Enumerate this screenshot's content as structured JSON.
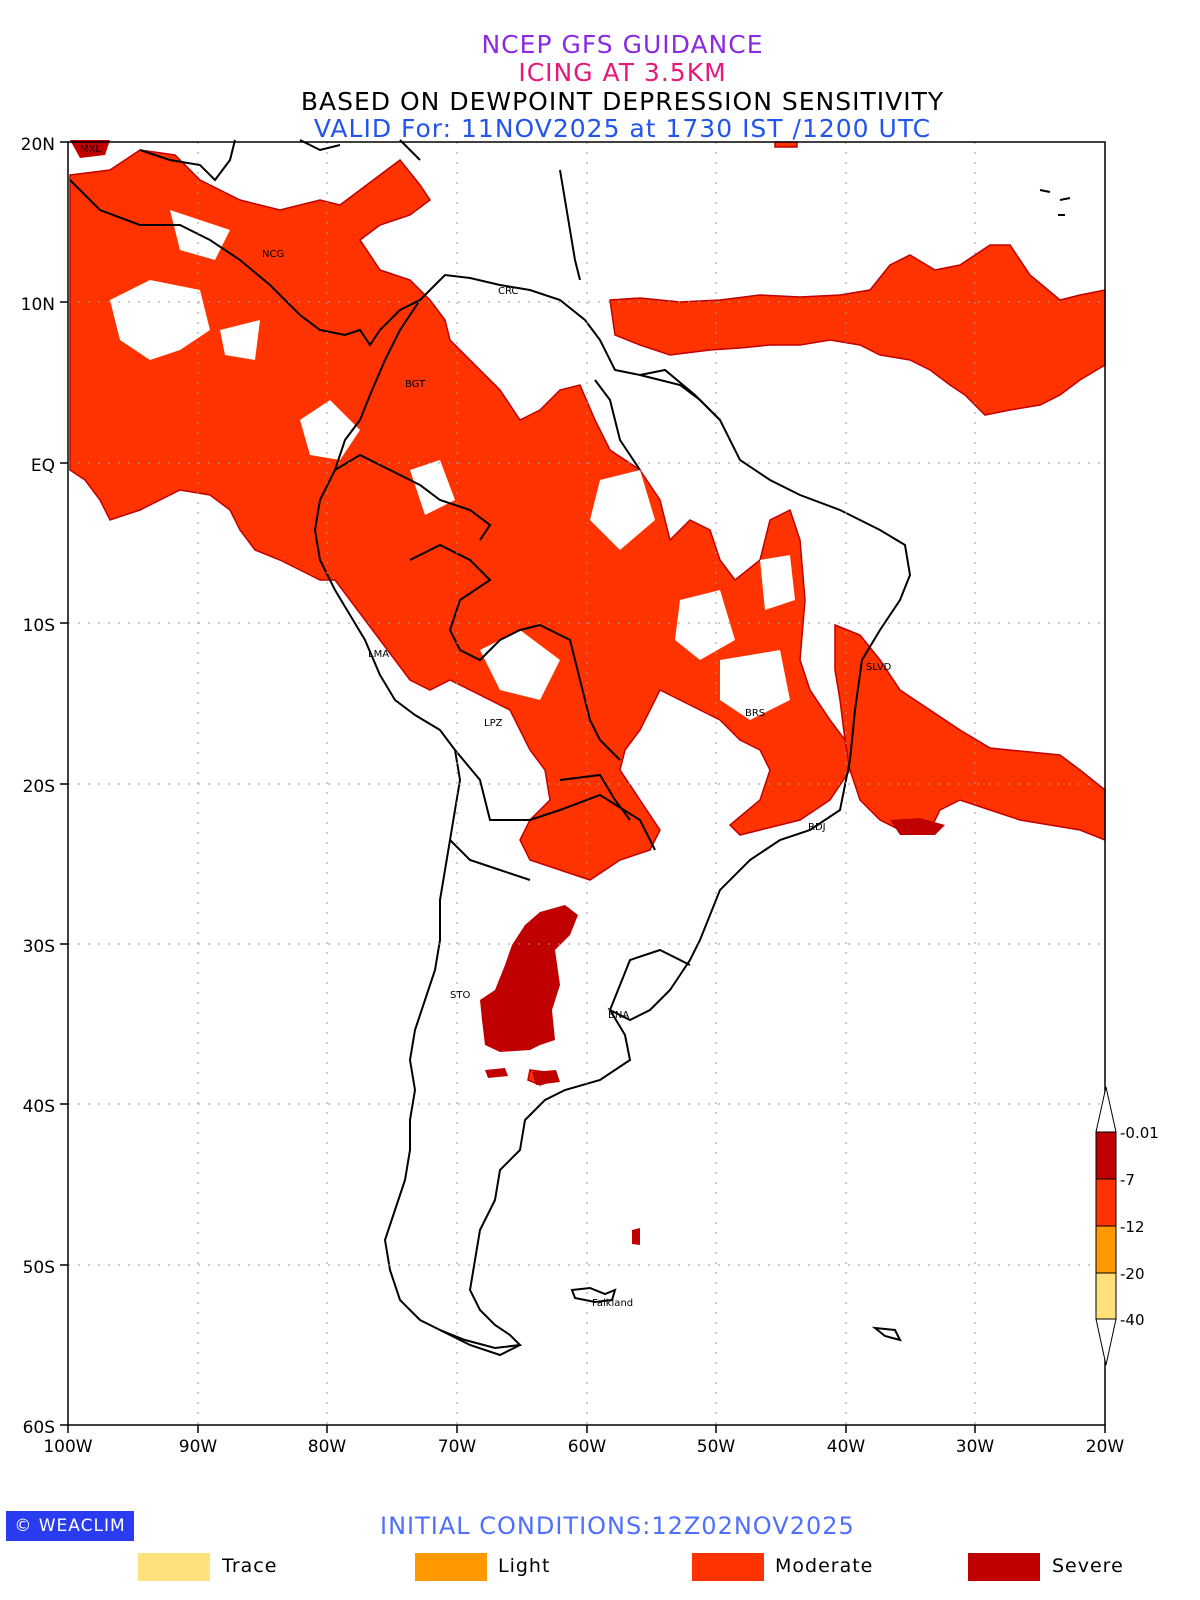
{
  "titles": {
    "line1": "NCEP GFS GUIDANCE",
    "line2": "ICING AT 3.5KM",
    "line3": "BASED ON DEWPOINT DEPRESSION SENSITIVITY",
    "line4": "VALID For: 11NOV2025 at 1730 IST /1200 UTC"
  },
  "axes": {
    "lat_labels": [
      "20N",
      "10N",
      "EQ",
      "10S",
      "20S",
      "30S",
      "40S",
      "50S",
      "60S"
    ],
    "lon_labels": [
      "100W",
      "90W",
      "80W",
      "70W",
      "60W",
      "50W",
      "40W",
      "30W",
      "20W"
    ]
  },
  "cities": [
    {
      "name": "MXL"
    },
    {
      "name": "NCG"
    },
    {
      "name": "CRC"
    },
    {
      "name": "BGT"
    },
    {
      "name": "LMA"
    },
    {
      "name": "LPZ"
    },
    {
      "name": "BRS"
    },
    {
      "name": "SLVD"
    },
    {
      "name": "RDJ"
    },
    {
      "name": "STO"
    },
    {
      "name": "BNA"
    },
    {
      "name": "Falkland"
    }
  ],
  "colorbar": {
    "ticks": [
      "-0.01",
      "-7",
      "-12",
      "-20",
      "-40"
    ],
    "colors": [
      "#c00000",
      "#ff3300",
      "#ff9900",
      "#ffe07a"
    ]
  },
  "colors": {
    "trace": "#ffe07a",
    "light": "#ff9900",
    "moderate": "#ff3300",
    "severe": "#c00000"
  },
  "footer": {
    "brand": "© WEACLIM",
    "initial_conditions": "INITIAL CONDITIONS:12Z02NOV2025"
  },
  "legend": [
    {
      "label": "Trace",
      "color": "#ffe07a"
    },
    {
      "label": "Light",
      "color": "#ff9900"
    },
    {
      "label": "Moderate",
      "color": "#ff3300"
    },
    {
      "label": "Severe",
      "color": "#c00000"
    }
  ]
}
